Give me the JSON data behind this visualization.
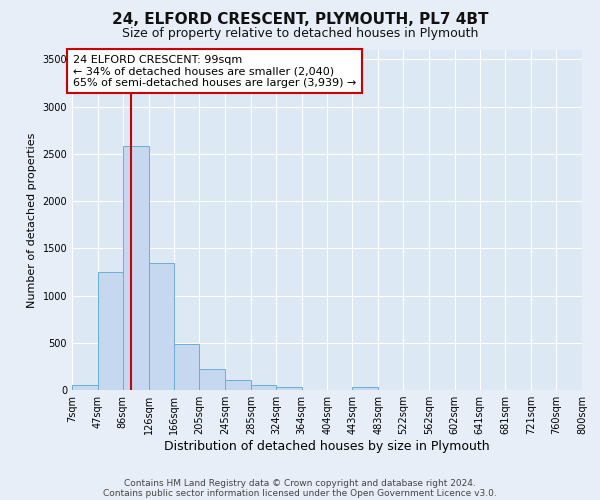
{
  "title1": "24, ELFORD CRESCENT, PLYMOUTH, PL7 4BT",
  "title2": "Size of property relative to detached houses in Plymouth",
  "xlabel": "Distribution of detached houses by size in Plymouth",
  "ylabel": "Number of detached properties",
  "annotation_line1": "24 ELFORD CRESCENT: 99sqm",
  "annotation_line2": "← 34% of detached houses are smaller (2,040)",
  "annotation_line3": "65% of semi-detached houses are larger (3,939) →",
  "bin_edges": [
    7,
    47,
    86,
    126,
    166,
    205,
    245,
    285,
    324,
    364,
    404,
    443,
    483,
    522,
    562,
    602,
    641,
    681,
    721,
    760,
    800
  ],
  "bar_heights": [
    50,
    1250,
    2580,
    1340,
    490,
    220,
    110,
    50,
    30,
    5,
    0,
    30,
    5,
    0,
    0,
    0,
    0,
    0,
    0,
    0
  ],
  "bar_color": "#c5d8f0",
  "bar_edge_color": "#6baed6",
  "vline_color": "#cc0000",
  "vline_x": 99,
  "ylim": [
    0,
    3600
  ],
  "yticks": [
    0,
    500,
    1000,
    1500,
    2000,
    2500,
    3000,
    3500
  ],
  "fig_bg_color": "#e8eef8",
  "axes_bg_color": "#dde8f5",
  "grid_color": "#ffffff",
  "ann_box_edge_color": "#cc0000",
  "ann_box_face_color": "#ffffff",
  "footer1": "Contains HM Land Registry data © Crown copyright and database right 2024.",
  "footer2": "Contains public sector information licensed under the Open Government Licence v3.0.",
  "title1_fontsize": 11,
  "title2_fontsize": 9,
  "ylabel_fontsize": 8,
  "xlabel_fontsize": 9,
  "tick_fontsize": 7,
  "ann_fontsize": 8
}
